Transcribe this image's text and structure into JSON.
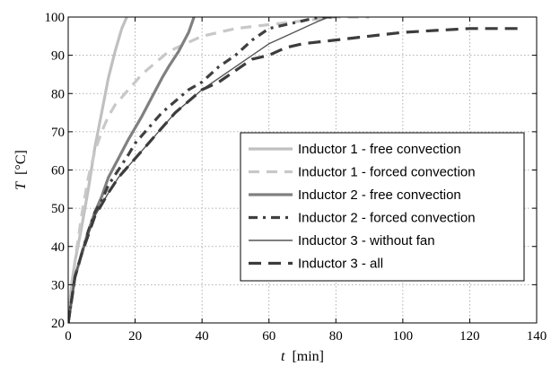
{
  "chart_data": {
    "type": "line",
    "title": "",
    "xlabel": {
      "symbol": "t",
      "unit": "[min]"
    },
    "ylabel": {
      "symbol": "T",
      "unit": "[°C]"
    },
    "xlim": [
      0,
      140
    ],
    "ylim": [
      20,
      100
    ],
    "xticks": [
      "0",
      "20",
      "40",
      "60",
      "80",
      "100",
      "120",
      "140"
    ],
    "yticks": [
      "20",
      "30",
      "40",
      "50",
      "60",
      "70",
      "80",
      "90",
      "100"
    ],
    "grid": true,
    "legend_position": "center-right",
    "series": [
      {
        "name": "Inductor 1 - free convection",
        "color": "#c0c0c0",
        "style": "solid",
        "width": "thick",
        "points": [
          [
            0,
            20
          ],
          [
            1,
            30
          ],
          [
            2,
            36
          ],
          [
            4,
            45
          ],
          [
            6,
            55
          ],
          [
            8,
            66
          ],
          [
            10,
            75
          ],
          [
            12,
            84
          ],
          [
            14,
            91
          ],
          [
            16,
            97
          ],
          [
            18,
            101
          ]
        ]
      },
      {
        "name": "Inductor 1 - forced convection",
        "color": "#c8c8c8",
        "style": "dashed",
        "width": "thick",
        "points": [
          [
            0,
            20
          ],
          [
            2,
            36
          ],
          [
            4,
            48
          ],
          [
            6,
            58
          ],
          [
            8,
            65
          ],
          [
            10,
            70
          ],
          [
            12,
            74
          ],
          [
            14,
            77
          ],
          [
            16,
            79
          ],
          [
            18,
            81
          ],
          [
            20,
            83
          ],
          [
            22,
            85
          ],
          [
            26,
            88
          ],
          [
            30,
            91
          ],
          [
            35,
            93
          ],
          [
            40,
            95
          ],
          [
            45,
            96
          ],
          [
            50,
            97
          ],
          [
            60,
            98
          ],
          [
            70,
            99
          ],
          [
            80,
            100
          ],
          [
            90,
            100
          ]
        ]
      },
      {
        "name": "Inductor 2 - free convection",
        "color": "#808080",
        "style": "solid",
        "width": "thick",
        "points": [
          [
            0,
            20
          ],
          [
            2,
            32
          ],
          [
            4,
            38
          ],
          [
            6,
            44
          ],
          [
            8,
            49
          ],
          [
            10,
            53
          ],
          [
            12,
            58
          ],
          [
            15,
            63
          ],
          [
            18,
            68
          ],
          [
            20,
            71
          ],
          [
            22,
            74
          ],
          [
            25,
            79
          ],
          [
            28,
            84
          ],
          [
            30,
            87
          ],
          [
            33,
            91
          ],
          [
            36,
            96
          ],
          [
            38,
            101
          ]
        ]
      },
      {
        "name": "Inductor 2 - forced convection",
        "color": "#404040",
        "style": "dashdot",
        "width": "thick",
        "points": [
          [
            0,
            20
          ],
          [
            2,
            32
          ],
          [
            4,
            38
          ],
          [
            6,
            44
          ],
          [
            8,
            49
          ],
          [
            10,
            52
          ],
          [
            12,
            56
          ],
          [
            15,
            60
          ],
          [
            18,
            64
          ],
          [
            20,
            67
          ],
          [
            24,
            71
          ],
          [
            28,
            75
          ],
          [
            32,
            78
          ],
          [
            36,
            81
          ],
          [
            40,
            83
          ],
          [
            45,
            87
          ],
          [
            50,
            90
          ],
          [
            55,
            94
          ],
          [
            60,
            97
          ],
          [
            65,
            98
          ],
          [
            70,
            99
          ],
          [
            75,
            100
          ],
          [
            80,
            100
          ]
        ]
      },
      {
        "name": "Inductor 3 - without fan",
        "color": "#555555",
        "style": "solid",
        "width": "thin",
        "points": [
          [
            0,
            20
          ],
          [
            2,
            32
          ],
          [
            4,
            38
          ],
          [
            6,
            43
          ],
          [
            8,
            48
          ],
          [
            10,
            51
          ],
          [
            12,
            54
          ],
          [
            15,
            58
          ],
          [
            18,
            61
          ],
          [
            20,
            63
          ],
          [
            24,
            67
          ],
          [
            28,
            71
          ],
          [
            32,
            75
          ],
          [
            36,
            78
          ],
          [
            40,
            81
          ],
          [
            45,
            84
          ],
          [
            50,
            87
          ],
          [
            55,
            90
          ],
          [
            60,
            93
          ],
          [
            65,
            95
          ],
          [
            70,
            97
          ],
          [
            75,
            99
          ],
          [
            78,
            100
          ],
          [
            80,
            100
          ]
        ]
      },
      {
        "name": "Inductor 3 - all",
        "color": "#3c3c3c",
        "style": "longdash",
        "width": "thick",
        "points": [
          [
            0,
            20
          ],
          [
            2,
            32
          ],
          [
            4,
            38
          ],
          [
            6,
            43
          ],
          [
            8,
            48
          ],
          [
            10,
            51
          ],
          [
            12,
            54
          ],
          [
            15,
            58
          ],
          [
            18,
            61
          ],
          [
            20,
            63
          ],
          [
            24,
            67
          ],
          [
            28,
            71
          ],
          [
            32,
            75
          ],
          [
            36,
            78
          ],
          [
            40,
            81
          ],
          [
            45,
            83
          ],
          [
            50,
            86
          ],
          [
            55,
            89
          ],
          [
            60,
            90
          ],
          [
            65,
            92
          ],
          [
            70,
            93
          ],
          [
            80,
            94
          ],
          [
            90,
            95
          ],
          [
            100,
            96
          ],
          [
            110,
            96.5
          ],
          [
            120,
            97
          ],
          [
            130,
            97
          ],
          [
            136,
            97
          ]
        ]
      }
    ]
  }
}
